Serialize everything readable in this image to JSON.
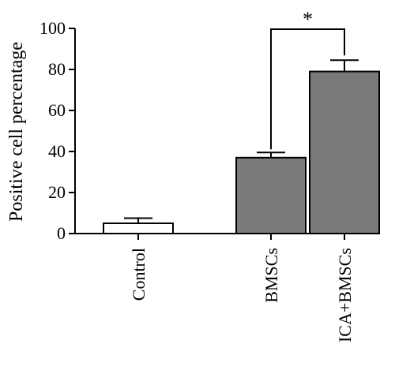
{
  "chart_data": {
    "type": "bar",
    "title": "",
    "xlabel": "",
    "ylabel": "Positive cell percentage",
    "ylim": [
      0,
      100
    ],
    "yticks": [
      0,
      20,
      40,
      60,
      80,
      100
    ],
    "grid": false,
    "categories": [
      "Control",
      "BMSCs",
      "ICA+BMSCs"
    ],
    "values": [
      5,
      37,
      79
    ],
    "errors": [
      2.5,
      2.5,
      5.5
    ],
    "bar_colors": [
      "#ffffff",
      "#7a7a7a",
      "#7a7a7a"
    ],
    "significance": [
      {
        "from": "BMSCs",
        "to": "ICA+BMSCs",
        "label": "*"
      }
    ]
  }
}
